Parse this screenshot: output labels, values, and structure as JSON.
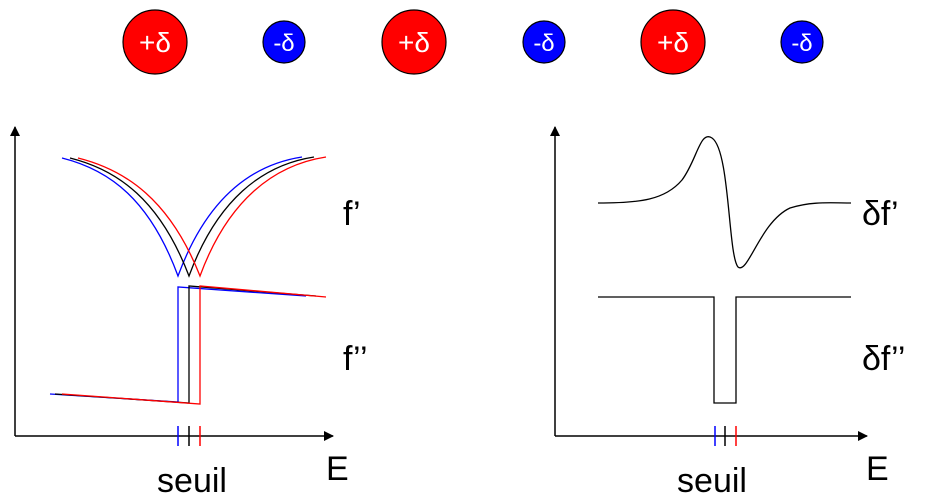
{
  "ions": [
    {
      "label": "+δ",
      "color": "#ff0000"
    },
    {
      "label": "-δ",
      "color": "#0000ff"
    },
    {
      "label": "+δ",
      "color": "#ff0000"
    },
    {
      "label": "-δ",
      "color": "#0000ff"
    },
    {
      "label": "+δ",
      "color": "#ff0000"
    },
    {
      "label": "-δ",
      "color": "#0000ff"
    }
  ],
  "left_panel": {
    "f_prime_label": "f’",
    "f_double_prime_label": "f’’",
    "x_label": "E",
    "threshold_label": "seuil"
  },
  "right_panel": {
    "delta_f_prime_label": "δf’",
    "delta_f_double_prime_label": "δf’’",
    "x_label": "E",
    "threshold_label": "seuil"
  },
  "colors": {
    "blue": "#0000ff",
    "black": "#000000",
    "red": "#ff0000"
  }
}
